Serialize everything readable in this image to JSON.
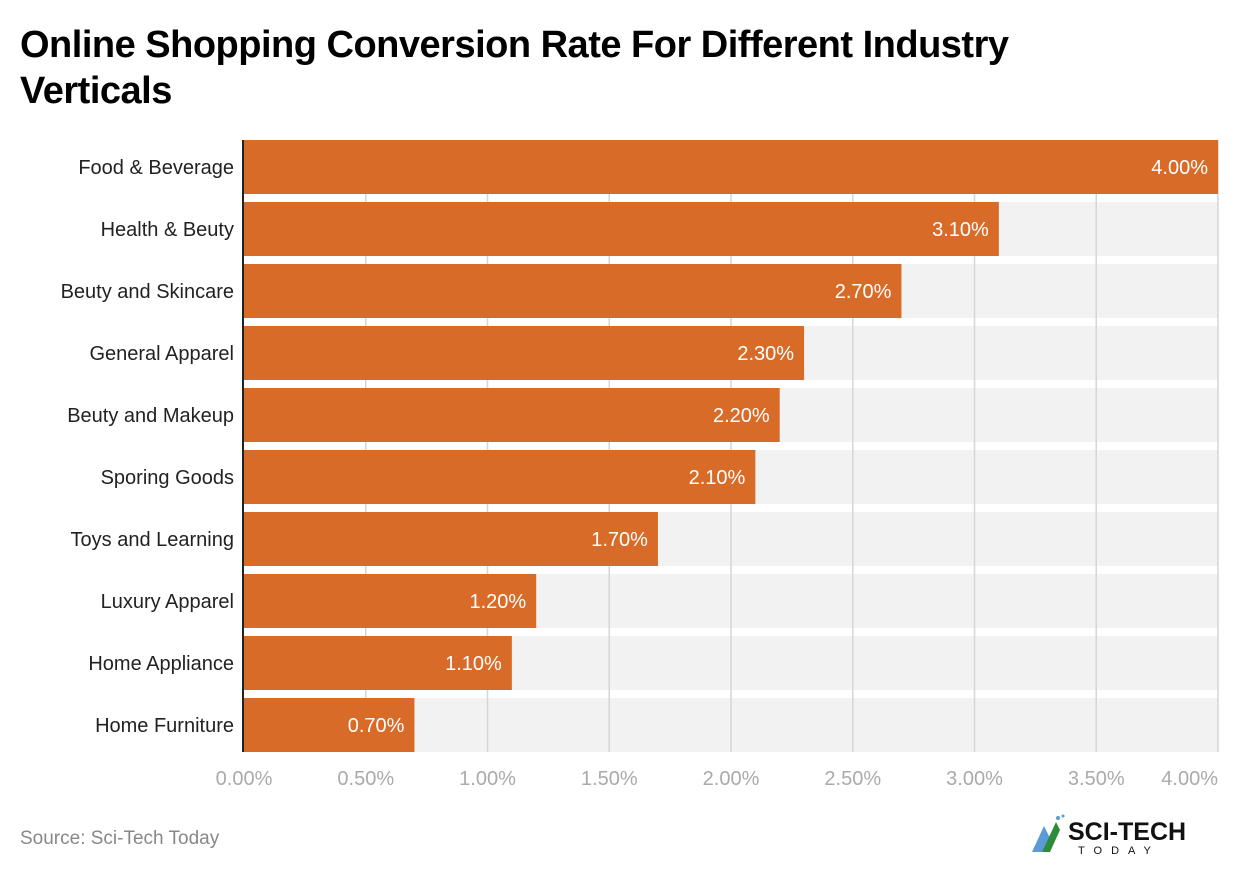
{
  "chart_data": {
    "type": "bar",
    "orientation": "horizontal",
    "title": "Online Shopping Conversion Rate For Different Industry Verticals",
    "categories": [
      "Food & Beverage",
      "Health & Beuty",
      "Beuty and Skincare",
      "General Apparel",
      "Beuty and Makeup",
      "Sporing Goods",
      "Toys and Learning",
      "Luxury Apparel",
      "Home Appliance",
      "Home Furniture"
    ],
    "values": [
      4.0,
      3.1,
      2.7,
      2.3,
      2.2,
      2.1,
      1.7,
      1.2,
      1.1,
      0.7
    ],
    "data_labels": [
      "4.00%",
      "3.10%",
      "2.70%",
      "2.30%",
      "2.20%",
      "2.10%",
      "1.70%",
      "1.20%",
      "1.10%",
      "0.70%"
    ],
    "xlim": [
      0,
      4.0
    ],
    "x_ticks": [
      0,
      0.5,
      1.0,
      1.5,
      2.0,
      2.5,
      3.0,
      3.5,
      4.0
    ],
    "x_tick_labels": [
      "0.00%",
      "0.50%",
      "1.00%",
      "1.50%",
      "2.00%",
      "2.50%",
      "3.00%",
      "3.50%",
      "4.00%"
    ],
    "xlabel": "",
    "ylabel": "",
    "grid": true,
    "colors": {
      "bar": "#d96b28",
      "band": "#f2f2f2",
      "grid": "#d6d6d6",
      "tick_text": "#aaaaaa"
    }
  },
  "source": "Source: Sci-Tech Today",
  "logo": {
    "text_main": "SCI-TECH",
    "text_sub": "TODAY"
  }
}
